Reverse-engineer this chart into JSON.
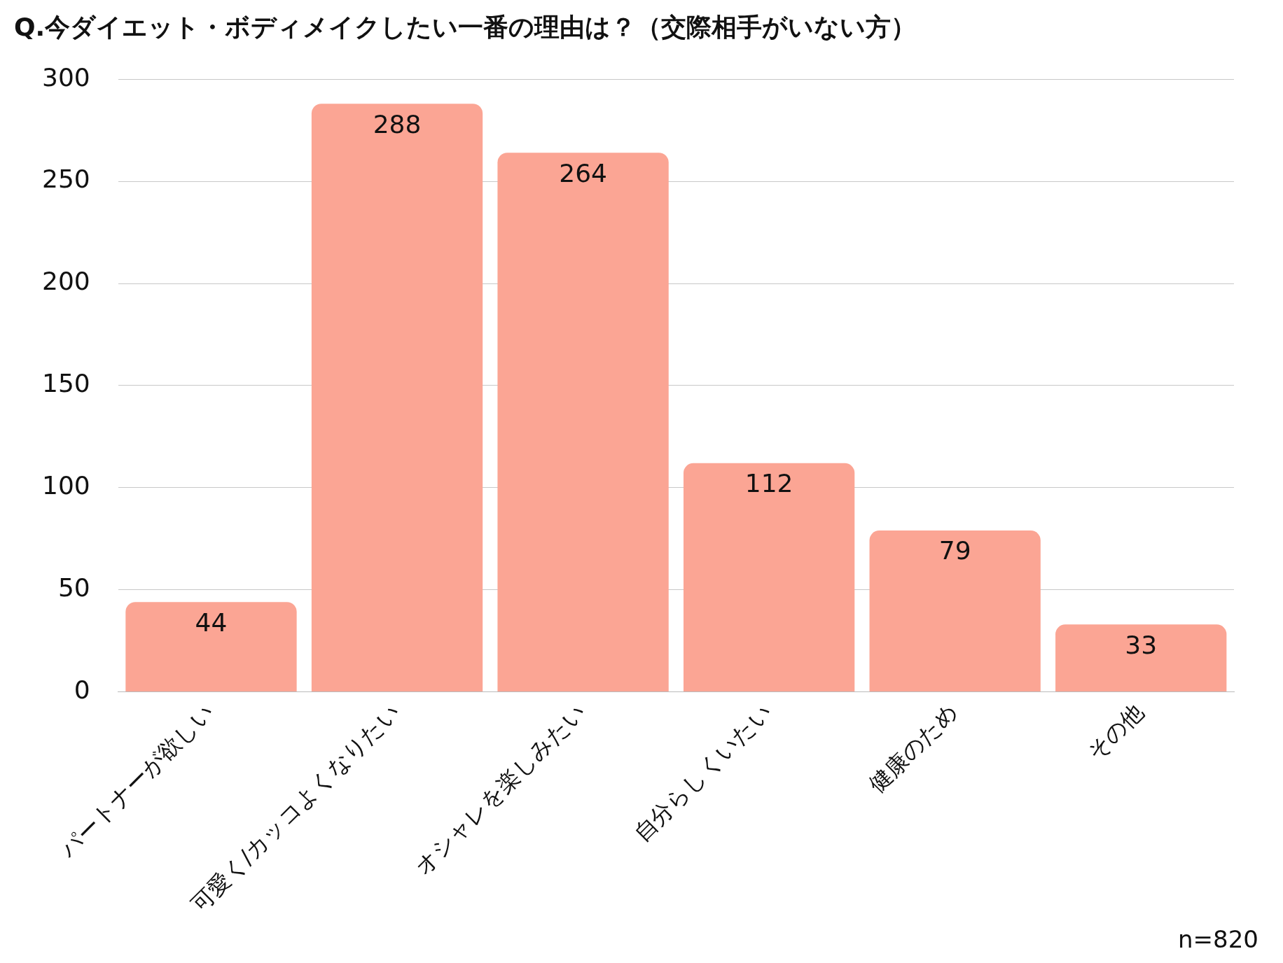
{
  "chart_data": {
    "type": "bar",
    "title": "Q.今ダイエット・ボディメイクしたい一番の理由は？（交際相手がいない方）",
    "categories": [
      "パートナーが欲しい",
      "可愛く/カッコよくなりたい",
      "オシャレを楽しみたい",
      "自分らしくいたい",
      "健康のため",
      "その他"
    ],
    "values": [
      44,
      288,
      264,
      112,
      79,
      33
    ],
    "color": "#fba594",
    "ylim": [
      0,
      300
    ],
    "yticks": [
      0,
      50,
      100,
      150,
      200,
      250,
      300
    ],
    "grid": "y",
    "data_labels": true,
    "annotations": [
      "n=820"
    ]
  }
}
